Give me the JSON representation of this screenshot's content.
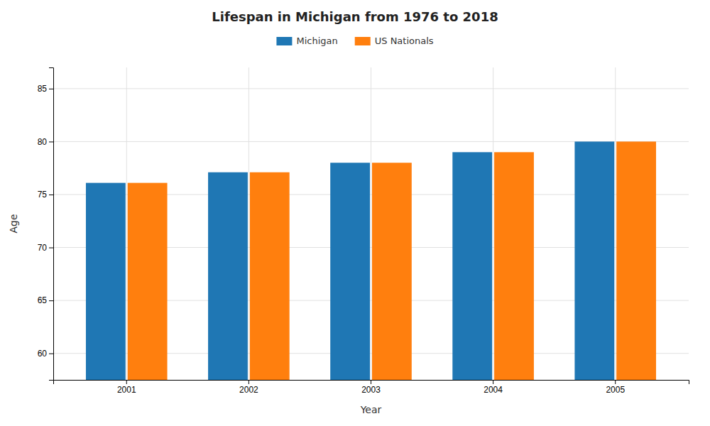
{
  "chart_data": {
    "type": "bar",
    "title": "Lifespan in Michigan from 1976 to 2018",
    "xlabel": "Year",
    "ylabel": "Age",
    "categories": [
      "2001",
      "2002",
      "2003",
      "2004",
      "2005"
    ],
    "series": [
      {
        "name": "Michigan",
        "values": [
          76.1,
          77.1,
          78.0,
          79.0,
          80.0
        ]
      },
      {
        "name": "US Nationals",
        "values": [
          76.1,
          77.1,
          78.0,
          79.0,
          80.0
        ]
      }
    ],
    "ylim": [
      57.5,
      87
    ],
    "yticks": [
      60,
      65,
      70,
      75,
      80,
      85
    ],
    "grid": true,
    "legend": "top"
  }
}
